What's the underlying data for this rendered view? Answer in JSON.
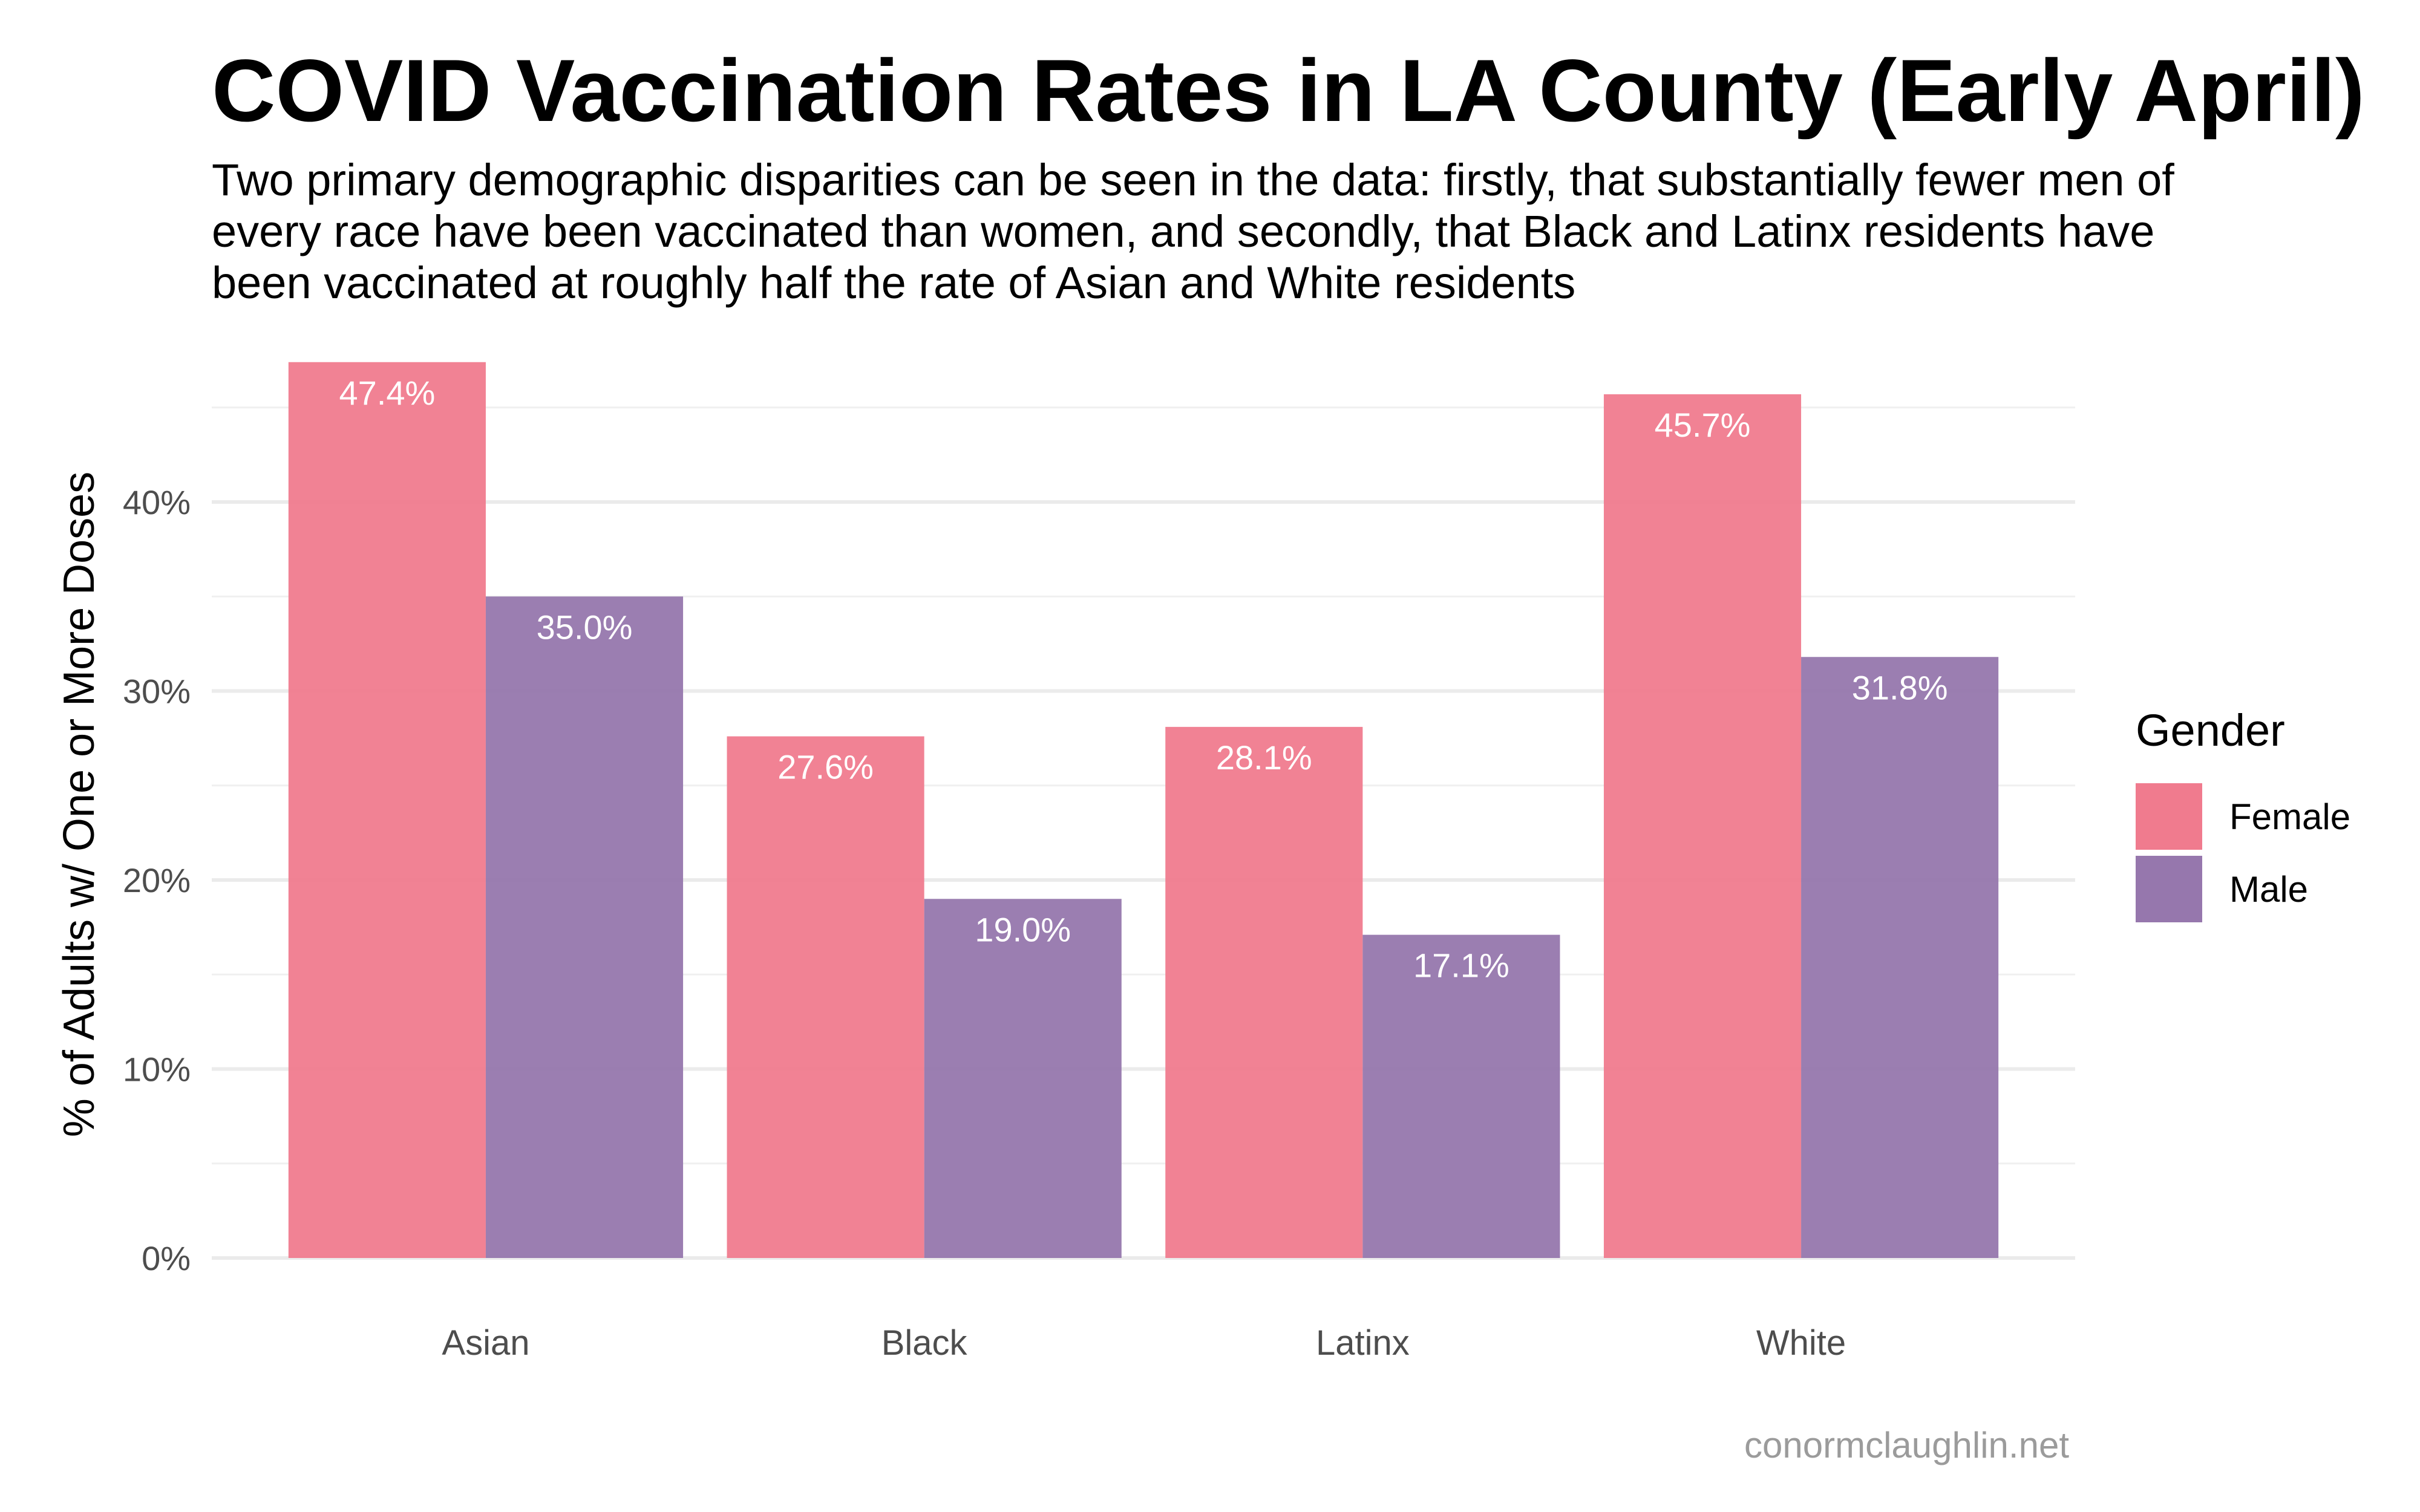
{
  "title": "COVID Vaccination Rates in LA County (Early April)",
  "subtitle": "Two primary demographic disparities can be seen in the data: firstly, that substantially fewer men of every race have been vaccinated than women, and secondly, that Black and Latinx residents have been vaccinated at roughly half the rate of Asian and White residents",
  "caption": "conormclaughlin.net",
  "legend": {
    "title": "Gender"
  },
  "colors": {
    "Female": "#f07b8e",
    "Male": "#9677ad"
  },
  "chart_data": {
    "type": "bar",
    "categories": [
      "Asian",
      "Black",
      "Latinx",
      "White"
    ],
    "series": [
      {
        "name": "Female",
        "values": [
          47.4,
          27.6,
          28.1,
          45.7
        ],
        "labels": [
          "47.4%",
          "27.6%",
          "28.1%",
          "45.7%"
        ]
      },
      {
        "name": "Male",
        "values": [
          35.0,
          19.0,
          17.1,
          31.8
        ],
        "labels": [
          "35.0%",
          "19.0%",
          "17.1%",
          "31.8%"
        ]
      }
    ],
    "xlabel": "",
    "ylabel": "% of Adults w/ One or More Doses",
    "ylim": [
      0,
      48
    ],
    "yticks": [
      0,
      10,
      20,
      30,
      40
    ],
    "ytick_labels": [
      "0%",
      "10%",
      "20%",
      "30%",
      "40%"
    ],
    "grid": true,
    "legend_position": "right"
  }
}
